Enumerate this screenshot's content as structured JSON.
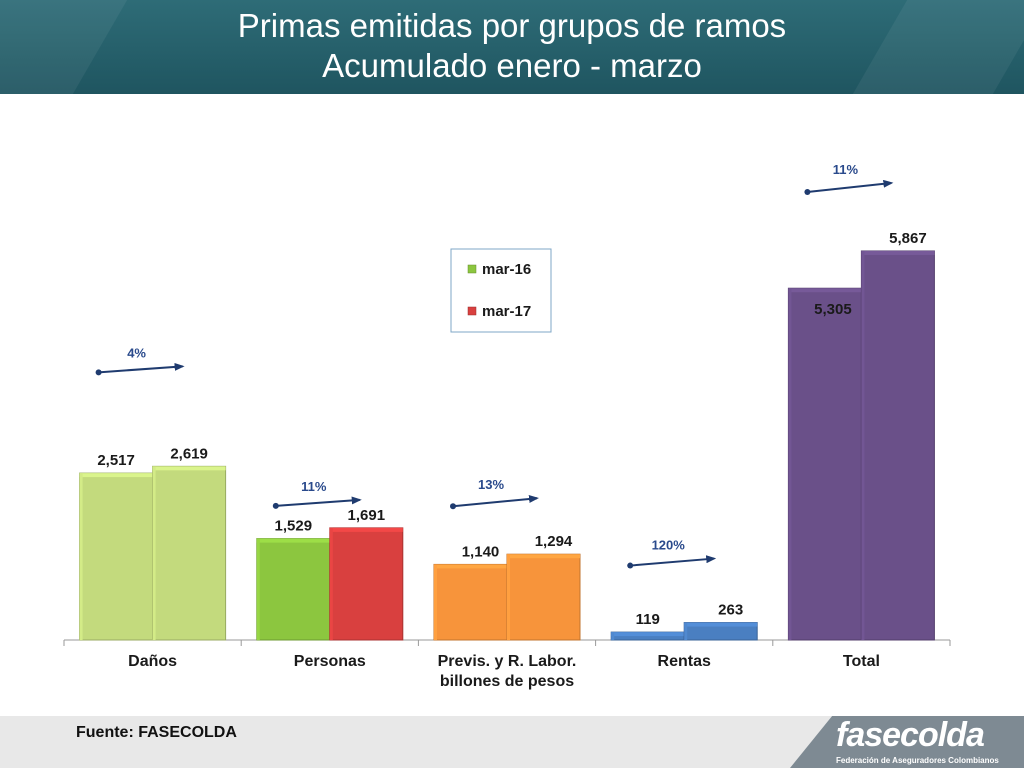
{
  "title_line1": "Primas emitidas por grupos de ramos",
  "title_line2": "Acumulado  enero - marzo",
  "source": "Fuente: FASECOLDA",
  "logo": {
    "name": "fasecolda",
    "tagline": "Federación de Aseguradores Colombianos"
  },
  "chart_data": {
    "type": "bar",
    "categories": [
      "Daños",
      "Personas",
      "Previs. y R. Labor.",
      "Rentas",
      "Total"
    ],
    "series": [
      {
        "name": "mar-16",
        "values": [
          2517,
          1529,
          1140,
          119,
          5305
        ]
      },
      {
        "name": "mar-17",
        "values": [
          2619,
          1691,
          1294,
          263,
          5867
        ]
      }
    ],
    "value_labels": [
      [
        "2,517",
        "2,619"
      ],
      [
        "1,529",
        "1,691"
      ],
      [
        "1,140",
        "1,294"
      ],
      [
        "119",
        "263"
      ],
      [
        "5,305",
        "5,867"
      ]
    ],
    "growth_labels": [
      "4%",
      "11%",
      "13%",
      "120%",
      "11%"
    ],
    "xlabel": "billones de pesos",
    "ylim": [
      0,
      6500
    ],
    "legend_position": "top-center",
    "category_colors": {
      "Daños": [
        "#c3da7d",
        "#c3da7d"
      ],
      "Personas": [
        "#8cc63f",
        "#d9403f"
      ],
      "Previs. y R. Labor.": [
        "#f7943b",
        "#f7943b"
      ],
      "Rentas": [
        "#4a7fc1",
        "#4a7fc1"
      ],
      "Total": [
        "#6a5089",
        "#6a5089"
      ]
    },
    "legend_colors": [
      "#8cc63f",
      "#d9403f"
    ],
    "arrow_color": "#1f3b6f",
    "growth_label_color": "#2a4a8c",
    "grid": false
  }
}
